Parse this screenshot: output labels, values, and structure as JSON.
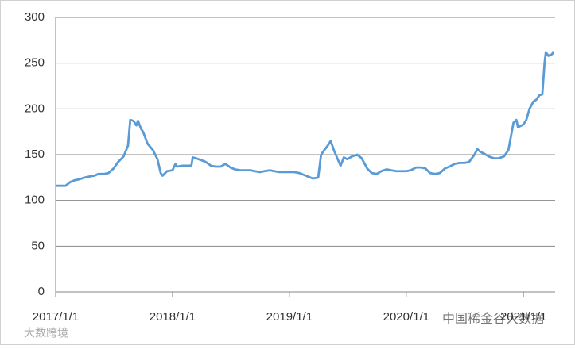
{
  "chart_data": {
    "type": "line",
    "x": [
      "2017/1/1",
      "2017/1/15",
      "2017/2/1",
      "2017/2/15",
      "2017/3/1",
      "2017/3/15",
      "2017/4/1",
      "2017/4/15",
      "2017/5/1",
      "2017/5/15",
      "2017/6/1",
      "2017/6/15",
      "2017/7/1",
      "2017/7/15",
      "2017/8/1",
      "2017/8/15",
      "2017/8/22",
      "2017/9/1",
      "2017/9/10",
      "2017/9/15",
      "2017/9/25",
      "2017/10/1",
      "2017/10/15",
      "2017/11/1",
      "2017/11/15",
      "2017/11/25",
      "2017/12/1",
      "2017/12/15",
      "2018/1/1",
      "2018/1/10",
      "2018/1/15",
      "2018/2/1",
      "2018/2/15",
      "2018/3/1",
      "2018/3/5",
      "2018/3/15",
      "2018/4/1",
      "2018/4/15",
      "2018/5/1",
      "2018/5/15",
      "2018/6/1",
      "2018/6/15",
      "2018/7/1",
      "2018/7/15",
      "2018/8/1",
      "2018/8/15",
      "2018/9/1",
      "2018/9/15",
      "2018/10/1",
      "2018/10/15",
      "2018/11/1",
      "2018/11/15",
      "2018/12/1",
      "2018/12/15",
      "2019/1/1",
      "2019/1/15",
      "2019/2/1",
      "2019/2/15",
      "2019/3/1",
      "2019/3/15",
      "2019/4/1",
      "2019/4/10",
      "2019/4/20",
      "2019/5/1",
      "2019/5/10",
      "2019/5/20",
      "2019/6/1",
      "2019/6/10",
      "2019/6/20",
      "2019/7/1",
      "2019/7/15",
      "2019/8/1",
      "2019/8/15",
      "2019/9/1",
      "2019/9/15",
      "2019/10/1",
      "2019/10/15",
      "2019/11/1",
      "2019/11/15",
      "2019/12/1",
      "2019/12/15",
      "2020/1/1",
      "2020/1/15",
      "2020/2/1",
      "2020/2/15",
      "2020/3/1",
      "2020/3/15",
      "2020/4/1",
      "2020/4/15",
      "2020/5/1",
      "2020/5/15",
      "2020/6/1",
      "2020/6/15",
      "2020/7/1",
      "2020/7/15",
      "2020/8/1",
      "2020/8/10",
      "2020/8/20",
      "2020/9/1",
      "2020/9/15",
      "2020/10/1",
      "2020/10/15",
      "2020/11/1",
      "2020/11/15",
      "2020/12/1",
      "2020/12/10",
      "2020/12/15",
      "2021/1/1",
      "2021/1/10",
      "2021/1/20",
      "2021/2/1",
      "2021/2/10",
      "2021/2/20",
      "2021/3/1",
      "2021/3/8",
      "2021/3/12",
      "2021/3/20",
      "2021/4/1",
      "2021/4/5"
    ],
    "series": [
      {
        "color": "#5b9bd5",
        "values": [
          116,
          116,
          116,
          120,
          122,
          123,
          125,
          126,
          127,
          129,
          129,
          130,
          135,
          142,
          148,
          160,
          188,
          187,
          182,
          187,
          178,
          175,
          162,
          155,
          145,
          130,
          127,
          132,
          133,
          140,
          137,
          138,
          138,
          138,
          147,
          146,
          144,
          142,
          138,
          137,
          137,
          140,
          136,
          134,
          133,
          133,
          133,
          132,
          131,
          132,
          133,
          132,
          131,
          131,
          131,
          131,
          130,
          128,
          126,
          124,
          125,
          150,
          155,
          160,
          165,
          155,
          145,
          138,
          147,
          145,
          148,
          150,
          146,
          135,
          130,
          129,
          132,
          134,
          133,
          132,
          132,
          132,
          133,
          136,
          136,
          135,
          130,
          129,
          130,
          135,
          137,
          140,
          141,
          141,
          142,
          150,
          156,
          153,
          151,
          148,
          146,
          146,
          148,
          155,
          185,
          188,
          180,
          183,
          188,
          200,
          208,
          210,
          215,
          216,
          250,
          262,
          258,
          260,
          263
        ]
      }
    ],
    "xlim": [
      "2017/1/1",
      "2021/4/10"
    ],
    "xticks": [
      "2017/1/1",
      "2018/1/1",
      "2019/1/1",
      "2020/1/1",
      "2021/1/1"
    ],
    "ylim": [
      0,
      300
    ],
    "yticks": [
      0,
      50,
      100,
      150,
      200,
      250,
      300
    ],
    "grid": true,
    "watermarks": [
      "大数跨境",
      "中国稀金谷大数据"
    ]
  }
}
